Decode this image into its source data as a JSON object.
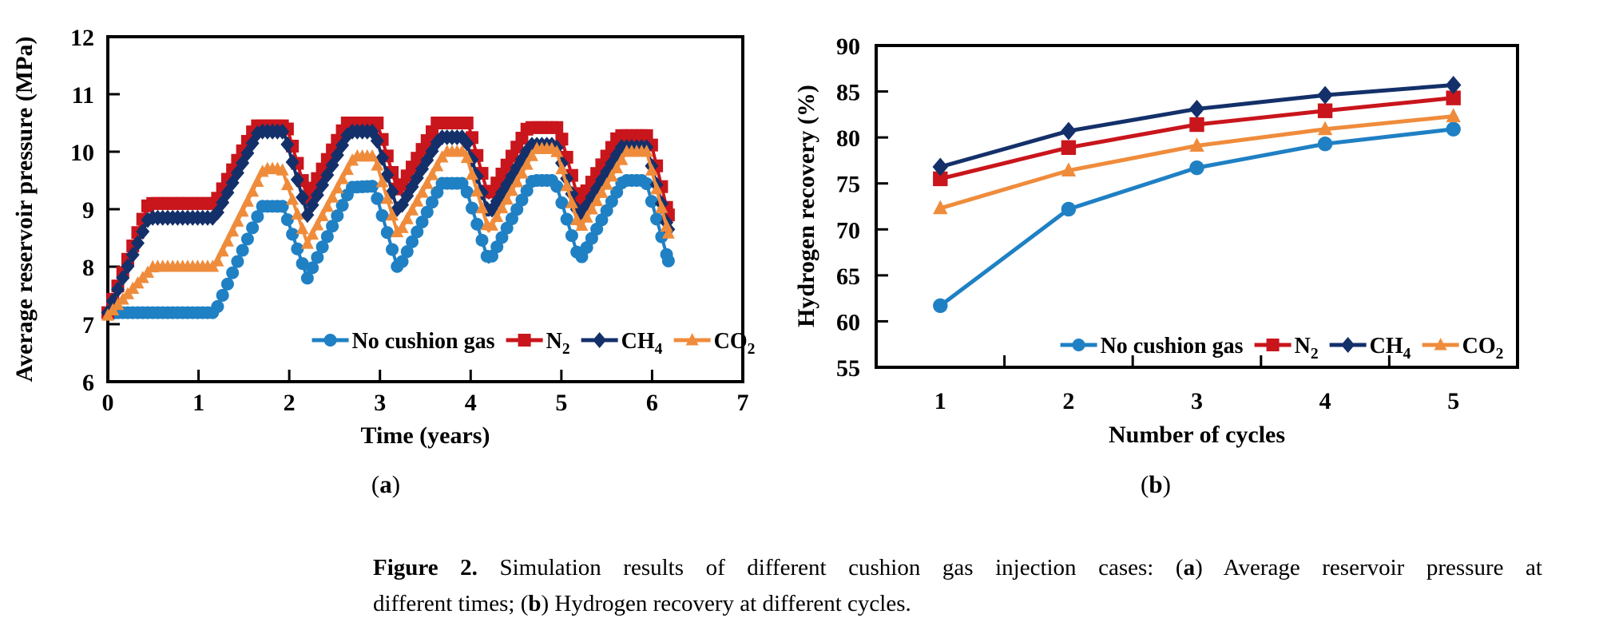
{
  "figure": {
    "panel_a": {
      "parts": [
        {
          "t": "("
        },
        {
          "t": "a",
          "b": true
        },
        {
          "t": ")"
        }
      ]
    },
    "panel_b": {
      "parts": [
        {
          "t": "("
        },
        {
          "t": "b",
          "b": true
        },
        {
          "t": ")"
        }
      ]
    },
    "caption": {
      "lines": [
        {
          "parts": [
            {
              "t": "Figure 2.",
              "b": true
            },
            {
              "t": " Simulation results of different cushion gas injection cases: ("
            },
            {
              "t": "a",
              "b": true
            },
            {
              "t": ") Average reservoir pressure at"
            }
          ]
        },
        {
          "parts": [
            {
              "t": "different times; ("
            },
            {
              "t": "b",
              "b": true
            },
            {
              "t": ") Hydrogen recovery at different cycles."
            }
          ]
        }
      ]
    }
  },
  "palette": {
    "no_cushion_gas": "#1F80C4",
    "n2": "#C9151C",
    "ch4": "#14306A",
    "co2": "#EF8C3C",
    "axis": "#000000",
    "background": "#FFFFFF"
  },
  "chart_data": [
    {
      "id": "a",
      "type": "line",
      "title": "",
      "xlabel": "Time (years)",
      "ylabel": "Average reservoir pressure (MPa)",
      "xlim": [
        0,
        7
      ],
      "ylim": [
        6,
        12
      ],
      "xticks": [
        0,
        1,
        2,
        3,
        4,
        5,
        6,
        7
      ],
      "yticks": [
        6,
        7,
        8,
        9,
        10,
        11,
        12
      ],
      "grid": false,
      "legend_position": "inside-bottom",
      "series": [
        {
          "name": "No cushion gas",
          "marker": "circle",
          "color": "#1F80C4",
          "legend_parts": [
            {
              "t": "No cushion gas"
            }
          ],
          "points": [
            [
              0,
              7.18
            ],
            [
              0.1,
              7.2
            ],
            [
              1.18,
              7.2
            ],
            [
              1.7,
              9.05
            ],
            [
              1.93,
              9.05
            ],
            [
              2.2,
              7.8
            ],
            [
              2.68,
              9.38
            ],
            [
              2.93,
              9.4
            ],
            [
              3.2,
              7.95
            ],
            [
              3.68,
              9.45
            ],
            [
              3.93,
              9.45
            ],
            [
              4.2,
              8.08
            ],
            [
              4.68,
              9.5
            ],
            [
              4.93,
              9.5
            ],
            [
              5.2,
              8.1
            ],
            [
              5.68,
              9.5
            ],
            [
              5.93,
              9.5
            ],
            [
              6.18,
              8.1
            ]
          ]
        },
        {
          "name": "N2",
          "marker": "square",
          "color": "#C9151C",
          "legend_parts": [
            {
              "t": "N"
            },
            {
              "t": "2",
              "sub": true
            }
          ],
          "points": [
            [
              0,
              7.2
            ],
            [
              0.45,
              9.1
            ],
            [
              1.18,
              9.1
            ],
            [
              1.63,
              10.45
            ],
            [
              1.97,
              10.45
            ],
            [
              2.2,
              9.2
            ],
            [
              2.63,
              10.5
            ],
            [
              2.97,
              10.5
            ],
            [
              3.2,
              9.3
            ],
            [
              3.63,
              10.5
            ],
            [
              3.97,
              10.5
            ],
            [
              4.2,
              9.2
            ],
            [
              4.63,
              10.42
            ],
            [
              4.97,
              10.42
            ],
            [
              5.2,
              9.1
            ],
            [
              5.63,
              10.28
            ],
            [
              5.97,
              10.28
            ],
            [
              6.18,
              8.9
            ]
          ]
        },
        {
          "name": "CH4",
          "marker": "diamond",
          "color": "#14306A",
          "legend_parts": [
            {
              "t": "CH"
            },
            {
              "t": "4",
              "sub": true
            }
          ],
          "points": [
            [
              0,
              7.2
            ],
            [
              0.45,
              8.85
            ],
            [
              1.18,
              8.85
            ],
            [
              1.66,
              10.35
            ],
            [
              1.94,
              10.35
            ],
            [
              2.2,
              8.9
            ],
            [
              2.66,
              10.35
            ],
            [
              2.94,
              10.35
            ],
            [
              3.2,
              8.95
            ],
            [
              3.66,
              10.25
            ],
            [
              3.94,
              10.25
            ],
            [
              4.2,
              8.9
            ],
            [
              4.66,
              10.12
            ],
            [
              4.94,
              10.12
            ],
            [
              5.2,
              8.85
            ],
            [
              5.66,
              10.08
            ],
            [
              5.94,
              10.08
            ],
            [
              6.18,
              8.65
            ]
          ]
        },
        {
          "name": "CO2",
          "marker": "triangle",
          "color": "#EF8C3C",
          "legend_parts": [
            {
              "t": "CO"
            },
            {
              "t": "2",
              "sub": true
            }
          ],
          "points": [
            [
              0,
              7.15
            ],
            [
              0.5,
              8.0
            ],
            [
              1.18,
              8.0
            ],
            [
              1.72,
              9.7
            ],
            [
              1.92,
              9.7
            ],
            [
              2.2,
              8.4
            ],
            [
              2.72,
              9.92
            ],
            [
              2.94,
              9.92
            ],
            [
              3.2,
              8.55
            ],
            [
              3.72,
              10.0
            ],
            [
              3.94,
              10.0
            ],
            [
              4.2,
              8.62
            ],
            [
              4.72,
              10.05
            ],
            [
              4.94,
              10.05
            ],
            [
              5.2,
              8.65
            ],
            [
              5.72,
              10.0
            ],
            [
              5.94,
              10.0
            ],
            [
              6.18,
              8.58
            ]
          ]
        }
      ]
    },
    {
      "id": "b",
      "type": "line",
      "title": "",
      "xlabel": "Number of cycles",
      "ylabel": "Hydrogen recovery (%)",
      "xlim": [
        0.5,
        5.5
      ],
      "ylim": [
        55,
        90
      ],
      "xticks": [
        1,
        2,
        3,
        4,
        5
      ],
      "yticks": [
        55,
        60,
        65,
        70,
        75,
        80,
        85,
        90
      ],
      "grid": false,
      "legend_position": "inside-bottom",
      "series": [
        {
          "name": "No cushion gas",
          "marker": "circle",
          "color": "#1F80C4",
          "legend_parts": [
            {
              "t": "No cushion gas"
            }
          ],
          "points": [
            [
              1,
              61.7
            ],
            [
              2,
              72.2
            ],
            [
              3,
              76.7
            ],
            [
              4,
              79.3
            ],
            [
              5,
              80.9
            ]
          ]
        },
        {
          "name": "N2",
          "marker": "square",
          "color": "#C9151C",
          "legend_parts": [
            {
              "t": "N"
            },
            {
              "t": "2",
              "sub": true
            }
          ],
          "points": [
            [
              1,
              75.5
            ],
            [
              2,
              78.9
            ],
            [
              3,
              81.4
            ],
            [
              4,
              82.9
            ],
            [
              5,
              84.3
            ]
          ]
        },
        {
          "name": "CH4",
          "marker": "diamond",
          "color": "#14306A",
          "legend_parts": [
            {
              "t": "CH"
            },
            {
              "t": "4",
              "sub": true
            }
          ],
          "points": [
            [
              1,
              76.8
            ],
            [
              2,
              80.7
            ],
            [
              3,
              83.1
            ],
            [
              4,
              84.6
            ],
            [
              5,
              85.7
            ]
          ]
        },
        {
          "name": "CO2",
          "marker": "triangle",
          "color": "#EF8C3C",
          "legend_parts": [
            {
              "t": "CO"
            },
            {
              "t": "2",
              "sub": true
            }
          ],
          "points": [
            [
              1,
              72.3
            ],
            [
              2,
              76.4
            ],
            [
              3,
              79.1
            ],
            [
              4,
              80.9
            ],
            [
              5,
              82.3
            ]
          ]
        }
      ]
    }
  ]
}
